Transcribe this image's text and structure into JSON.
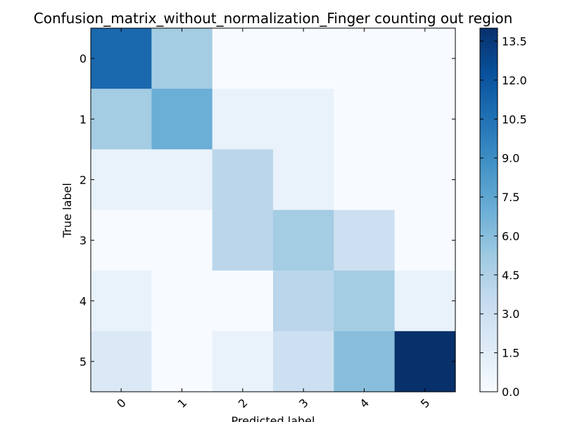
{
  "chart_data": {
    "type": "heatmap",
    "title": "Confusion_matrix_without_normalization_Finger counting out region",
    "xlabel": "Predicted label",
    "ylabel": "True label",
    "x_categories": [
      "0",
      "1",
      "2",
      "3",
      "4",
      "5"
    ],
    "y_categories": [
      "0",
      "1",
      "2",
      "3",
      "4",
      "5"
    ],
    "values": [
      [
        11,
        5,
        0,
        0,
        0,
        0
      ],
      [
        5,
        7,
        1,
        1,
        0,
        0
      ],
      [
        1,
        1,
        4,
        1,
        0,
        0
      ],
      [
        0,
        0,
        4,
        5,
        3,
        0
      ],
      [
        1,
        0,
        0,
        4,
        5,
        1
      ],
      [
        2,
        0,
        1,
        3,
        6,
        14
      ]
    ],
    "colormap": "Blues",
    "colorbar": {
      "min": 0.0,
      "max": 14,
      "ticks": [
        "0.0",
        "1.5",
        "3.0",
        "4.5",
        "6.0",
        "7.5",
        "9.0",
        "10.5",
        "12.0",
        "13.5"
      ]
    },
    "grid": false,
    "x_tick_rotation": 45
  }
}
